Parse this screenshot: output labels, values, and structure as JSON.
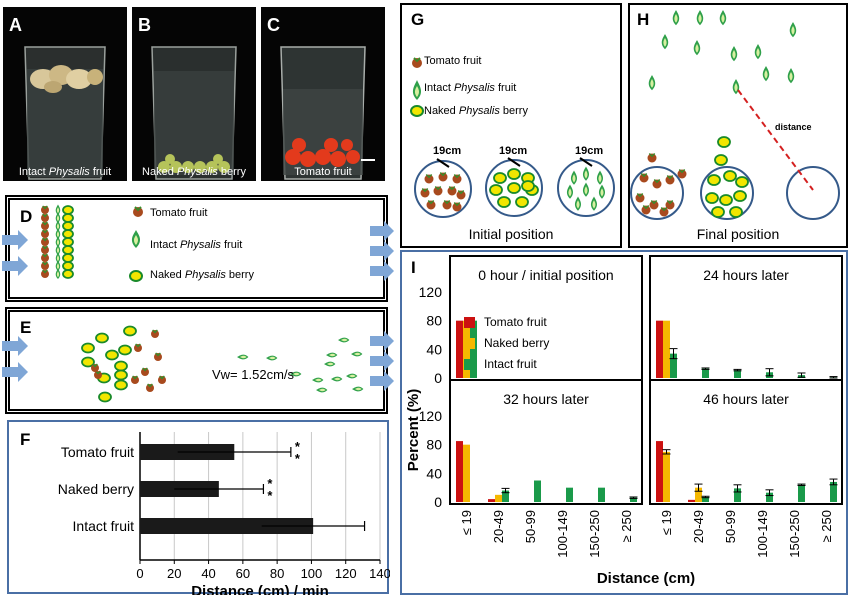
{
  "panels": {
    "A": {
      "letter": "A",
      "caption_pre": "Intact ",
      "caption_it": "Physalis",
      "caption_post": " fruit"
    },
    "B": {
      "letter": "B",
      "caption_pre": "Naked ",
      "caption_it": "Physalis",
      "caption_post": " berry"
    },
    "C": {
      "letter": "C",
      "caption": "Tomato fruit"
    },
    "D": {
      "letter": "D"
    },
    "E": {
      "letter": "E",
      "velocity": "Vw= 1.52cm/s"
    },
    "F": {
      "letter": "F"
    },
    "G": {
      "letter": "G",
      "caption": "Initial position",
      "scale_label": "19cm"
    },
    "H": {
      "letter": "H",
      "caption": "Final position",
      "distance_label": "distance"
    },
    "I": {
      "letter": "I"
    }
  },
  "legend": {
    "tomato": "Tomato fruit",
    "intact_pre": "Intact ",
    "intact_it": "Physalis",
    "intact_post": " fruit",
    "naked_pre": "Naked ",
    "naked_it": "Physalis",
    "naked_post": " berry"
  },
  "colors": {
    "tomato": "#cc1111",
    "naked": "#f5b800",
    "intact": "#1a9a4a",
    "bar_dark": "#1a1a1a",
    "frame_blue": "#4a6fa5",
    "arrow_blue": "#7fa6d6"
  },
  "chart_data": [
    {
      "id": "F",
      "type": "bar",
      "orientation": "horizontal",
      "categories": [
        "Tomato fruit",
        "Naked berry",
        "Intact fruit"
      ],
      "values": [
        55,
        46,
        101
      ],
      "errors": [
        33,
        26,
        30
      ],
      "significance": [
        "**",
        "**",
        ""
      ],
      "xlabel": "Distance (cm) / min",
      "xlim": [
        0,
        140
      ],
      "xticks": [
        0,
        20,
        40,
        60,
        80,
        100,
        120,
        140
      ],
      "grid": true
    },
    {
      "id": "I",
      "type": "bar",
      "ylabel": "Percent (%)",
      "xlabel": "Distance (cm)",
      "categories": [
        "≤ 19",
        "20-49",
        "50-99",
        "100-149",
        "150-250",
        "≥ 250"
      ],
      "ylim": [
        0,
        120
      ],
      "yticks": [
        0,
        40,
        80,
        120
      ],
      "legend": {
        "position": "inside-left",
        "entries": [
          "Tomato fruit",
          "Naked berry",
          "Intact fruit"
        ]
      },
      "subplots": [
        {
          "title": "0 hour / initial position",
          "series": [
            {
              "name": "Tomato fruit",
              "values": [
                80,
                0,
                0,
                0,
                0,
                0
              ]
            },
            {
              "name": "Naked berry",
              "values": [
                80,
                0,
                0,
                0,
                0,
                0
              ]
            },
            {
              "name": "Intact fruit",
              "values": [
                80,
                0,
                0,
                0,
                0,
                0
              ]
            }
          ]
        },
        {
          "title": "24 hours later",
          "series": [
            {
              "name": "Tomato fruit",
              "values": [
                80,
                0,
                0,
                0,
                0,
                0
              ]
            },
            {
              "name": "Naked berry",
              "values": [
                80,
                0,
                0,
                0,
                0,
                0
              ]
            },
            {
              "name": "Intact fruit",
              "values": [
                34,
                13,
                11,
                8,
                4,
                1
              ],
              "errors": [
                7,
                1,
                1,
                5,
                3,
                1
              ]
            }
          ]
        },
        {
          "title": "32 hours later",
          "series": [
            {
              "name": "Tomato fruit",
              "values": [
                85,
                4,
                0,
                0,
                0,
                0
              ]
            },
            {
              "name": "Naked berry",
              "values": [
                80,
                10,
                0,
                0,
                0,
                0
              ]
            },
            {
              "name": "Intact fruit",
              "values": [
                0,
                16,
                30,
                20,
                20,
                6
              ],
              "errors": [
                0,
                3,
                0,
                0,
                0,
                1
              ]
            }
          ]
        },
        {
          "title": "46 hours later",
          "series": [
            {
              "name": "Tomato fruit",
              "values": [
                85,
                3,
                0,
                0,
                0,
                0
              ]
            },
            {
              "name": "Naked berry",
              "values": [
                70,
                20,
                0,
                0,
                0,
                0
              ],
              "errors": [
                3,
                5,
                0,
                0,
                0,
                0
              ]
            },
            {
              "name": "Intact fruit",
              "values": [
                0,
                7,
                19,
                13,
                24,
                28
              ],
              "errors": [
                0,
                1,
                5,
                4,
                1,
                4
              ]
            }
          ]
        }
      ]
    }
  ]
}
